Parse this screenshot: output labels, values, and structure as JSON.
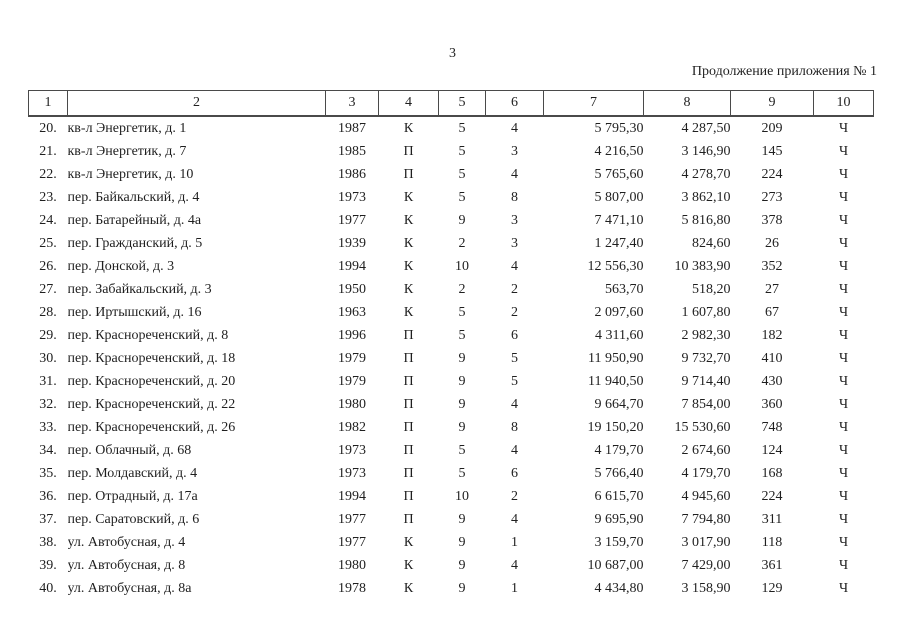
{
  "page": {
    "number": "3",
    "continuation": "Продолжение приложения № 1"
  },
  "table": {
    "columns": [
      "1",
      "2",
      "3",
      "4",
      "5",
      "6",
      "7",
      "8",
      "9",
      "10"
    ],
    "rows": [
      {
        "num": "20.",
        "address": "кв-л Энергетик, д. 1",
        "year": "1987",
        "material": "К",
        "floors": "5",
        "entrances": "4",
        "total_area": "5 795,30",
        "living_area": "4 287,50",
        "residents": "209",
        "form": "Ч"
      },
      {
        "num": "21.",
        "address": "кв-л Энергетик, д. 7",
        "year": "1985",
        "material": "П",
        "floors": "5",
        "entrances": "3",
        "total_area": "4 216,50",
        "living_area": "3 146,90",
        "residents": "145",
        "form": "Ч"
      },
      {
        "num": "22.",
        "address": "кв-л Энергетик, д. 10",
        "year": "1986",
        "material": "П",
        "floors": "5",
        "entrances": "4",
        "total_area": "5 765,60",
        "living_area": "4 278,70",
        "residents": "224",
        "form": "Ч"
      },
      {
        "num": "23.",
        "address": "пер. Байкальский, д. 4",
        "year": "1973",
        "material": "К",
        "floors": "5",
        "entrances": "8",
        "total_area": "5 807,00",
        "living_area": "3 862,10",
        "residents": "273",
        "form": "Ч"
      },
      {
        "num": "24.",
        "address": "пер. Батарейный, д. 4а",
        "year": "1977",
        "material": "К",
        "floors": "9",
        "entrances": "3",
        "total_area": "7 471,10",
        "living_area": "5 816,80",
        "residents": "378",
        "form": "Ч"
      },
      {
        "num": "25.",
        "address": "пер. Гражданский, д. 5",
        "year": "1939",
        "material": "К",
        "floors": "2",
        "entrances": "3",
        "total_area": "1 247,40",
        "living_area": "824,60",
        "residents": "26",
        "form": "Ч"
      },
      {
        "num": "26.",
        "address": "пер. Донской, д. 3",
        "year": "1994",
        "material": "К",
        "floors": "10",
        "entrances": "4",
        "total_area": "12 556,30",
        "living_area": "10 383,90",
        "residents": "352",
        "form": "Ч"
      },
      {
        "num": "27.",
        "address": "пер. Забайкальский, д. 3",
        "year": "1950",
        "material": "К",
        "floors": "2",
        "entrances": "2",
        "total_area": "563,70",
        "living_area": "518,20",
        "residents": "27",
        "form": "Ч"
      },
      {
        "num": "28.",
        "address": "пер. Иртышский, д. 16",
        "year": "1963",
        "material": "К",
        "floors": "5",
        "entrances": "2",
        "total_area": "2 097,60",
        "living_area": "1 607,80",
        "residents": "67",
        "form": "Ч"
      },
      {
        "num": "29.",
        "address": "пер. Краснореченский, д. 8",
        "year": "1996",
        "material": "П",
        "floors": "5",
        "entrances": "6",
        "total_area": "4 311,60",
        "living_area": "2 982,30",
        "residents": "182",
        "form": "Ч"
      },
      {
        "num": "30.",
        "address": "пер. Краснореченский, д. 18",
        "year": "1979",
        "material": "П",
        "floors": "9",
        "entrances": "5",
        "total_area": "11 950,90",
        "living_area": "9 732,70",
        "residents": "410",
        "form": "Ч"
      },
      {
        "num": "31.",
        "address": "пер. Краснореченский, д. 20",
        "year": "1979",
        "material": "П",
        "floors": "9",
        "entrances": "5",
        "total_area": "11 940,50",
        "living_area": "9 714,40",
        "residents": "430",
        "form": "Ч"
      },
      {
        "num": "32.",
        "address": "пер. Краснореченский, д. 22",
        "year": "1980",
        "material": "П",
        "floors": "9",
        "entrances": "4",
        "total_area": "9 664,70",
        "living_area": "7 854,00",
        "residents": "360",
        "form": "Ч"
      },
      {
        "num": "33.",
        "address": "пер. Краснореченский, д. 26",
        "year": "1982",
        "material": "П",
        "floors": "9",
        "entrances": "8",
        "total_area": "19 150,20",
        "living_area": "15 530,60",
        "residents": "748",
        "form": "Ч"
      },
      {
        "num": "34.",
        "address": "пер. Облачный, д. 68",
        "year": "1973",
        "material": "П",
        "floors": "5",
        "entrances": "4",
        "total_area": "4 179,70",
        "living_area": "2 674,60",
        "residents": "124",
        "form": "Ч"
      },
      {
        "num": "35.",
        "address": "пер. Молдавский, д. 4",
        "year": "1973",
        "material": "П",
        "floors": "5",
        "entrances": "6",
        "total_area": "5 766,40",
        "living_area": "4 179,70",
        "residents": "168",
        "form": "Ч"
      },
      {
        "num": "36.",
        "address": "пер. Отрадный, д. 17а",
        "year": "1994",
        "material": "П",
        "floors": "10",
        "entrances": "2",
        "total_area": "6 615,70",
        "living_area": "4 945,60",
        "residents": "224",
        "form": "Ч"
      },
      {
        "num": "37.",
        "address": "пер. Саратовский, д. 6",
        "year": "1977",
        "material": "П",
        "floors": "9",
        "entrances": "4",
        "total_area": "9 695,90",
        "living_area": "7 794,80",
        "residents": "311",
        "form": "Ч"
      },
      {
        "num": "38.",
        "address": "ул. Автобусная, д. 4",
        "year": "1977",
        "material": "К",
        "floors": "9",
        "entrances": "1",
        "total_area": "3 159,70",
        "living_area": "3 017,90",
        "residents": "118",
        "form": "Ч"
      },
      {
        "num": "39.",
        "address": "ул. Автобусная, д. 8",
        "year": "1980",
        "material": "К",
        "floors": "9",
        "entrances": "4",
        "total_area": "10 687,00",
        "living_area": "7 429,00",
        "residents": "361",
        "form": "Ч"
      },
      {
        "num": "40.",
        "address": "ул. Автобусная, д. 8а",
        "year": "1978",
        "material": "К",
        "floors": "9",
        "entrances": "1",
        "total_area": "4 434,80",
        "living_area": "3 158,90",
        "residents": "129",
        "form": "Ч"
      }
    ]
  }
}
